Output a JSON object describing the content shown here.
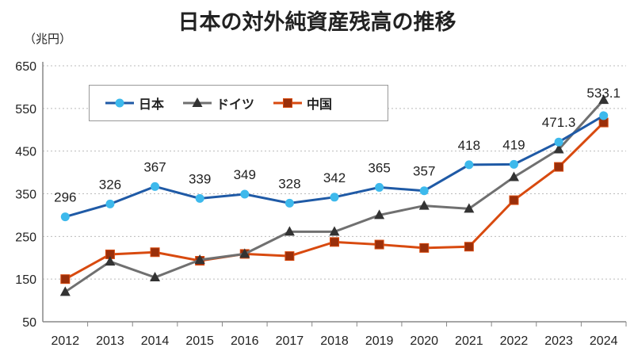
{
  "chart_data": {
    "type": "line",
    "title": "日本の対外純資産残高の推移",
    "ylabel": "（兆円）",
    "xlabel": "",
    "categories": [
      "2012",
      "2013",
      "2014",
      "2015",
      "2016",
      "2017",
      "2018",
      "2019",
      "2020",
      "2021",
      "2022",
      "2023",
      "2024"
    ],
    "ylim": [
      50,
      650
    ],
    "yticks": [
      50,
      150,
      250,
      350,
      450,
      550,
      650
    ],
    "grid": "horizontal dotted",
    "legend": "top-left",
    "series": [
      {
        "name": "日本",
        "color": "#1F5AA6",
        "marker": "circle",
        "marker_color": "#3DB9EC",
        "values": [
          296,
          326,
          367,
          339,
          349,
          328,
          342,
          365,
          357,
          418,
          419,
          471.3,
          533.1
        ],
        "labels": [
          "296",
          "326",
          "367",
          "339",
          "349",
          "328",
          "342",
          "365",
          "357",
          "418",
          "419",
          "471.3",
          "533.1"
        ]
      },
      {
        "name": "ドイツ",
        "color": "#707070",
        "marker": "triangle",
        "marker_color": "#333333",
        "values": [
          120,
          191,
          154,
          195,
          209,
          261,
          261,
          300,
          322,
          315,
          389,
          454,
          570
        ]
      },
      {
        "name": "中国",
        "color": "#D84A0F",
        "marker": "square",
        "marker_color": "#9A2F0A",
        "values": [
          150,
          208,
          213,
          193,
          209,
          204,
          237,
          231,
          223,
          226,
          335,
          413,
          517
        ]
      }
    ]
  }
}
